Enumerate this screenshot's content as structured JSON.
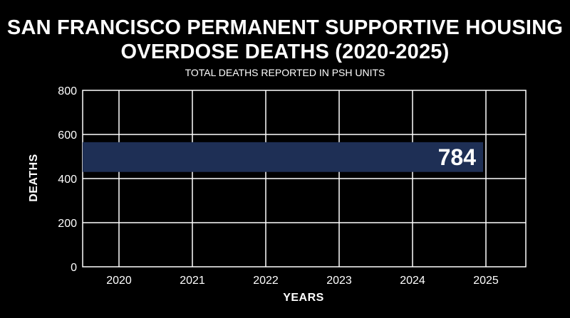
{
  "chart_data": {
    "type": "bar",
    "orientation": "horizontal",
    "title": "SAN FRANCISCO PERMANENT SUPPORTIVE HOUSING OVERDOSE DEATHS (2020-2025)",
    "subtitle": "TOTAL DEATHS REPORTED IN PSH UNITS",
    "xlabel": "YEARS",
    "ylabel": "DEATHS",
    "x_ticks": [
      "2020",
      "2021",
      "2022",
      "2023",
      "2024",
      "2025"
    ],
    "y_ticks": [
      "0",
      "200",
      "400",
      "600",
      "800"
    ],
    "ylim": [
      0,
      800
    ],
    "bar": {
      "value": 784,
      "label": "784",
      "x_start": "2020",
      "x_end": "2025",
      "y_low": 430,
      "y_high": 565,
      "color": "#1e2f55"
    },
    "grid": true,
    "background_color": "#000000",
    "text_color": "#ffffff",
    "grid_color": "#ffffff"
  }
}
